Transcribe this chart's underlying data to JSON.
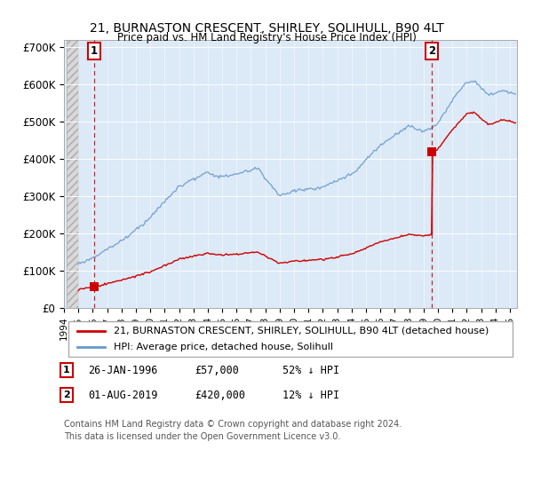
{
  "title": "21, BURNASTON CRESCENT, SHIRLEY, SOLIHULL, B90 4LT",
  "subtitle": "Price paid vs. HM Land Registry's House Price Index (HPI)",
  "ylabel_ticks": [
    "£0",
    "£100K",
    "£200K",
    "£300K",
    "£400K",
    "£500K",
    "£600K",
    "£700K"
  ],
  "ytick_values": [
    0,
    100000,
    200000,
    300000,
    400000,
    500000,
    600000,
    700000
  ],
  "ylim": [
    0,
    720000
  ],
  "xlim_start": 1994.2,
  "xlim_end": 2025.5,
  "sale1_date": 1996.08,
  "sale1_price": 57000,
  "sale2_date": 2019.58,
  "sale2_price": 420000,
  "hpi_color": "#6699cc",
  "sale_color": "#cc0000",
  "dashed_line_color": "#cc2222",
  "legend_sale_label": "21, BURNASTON CRESCENT, SHIRLEY, SOLIHULL, B90 4LT (detached house)",
  "legend_hpi_label": "HPI: Average price, detached house, Solihull",
  "footnote": "Contains HM Land Registry data © Crown copyright and database right 2024.\nThis data is licensed under the Open Government Licence v3.0.",
  "plot_bg_color": "#dce9f7"
}
